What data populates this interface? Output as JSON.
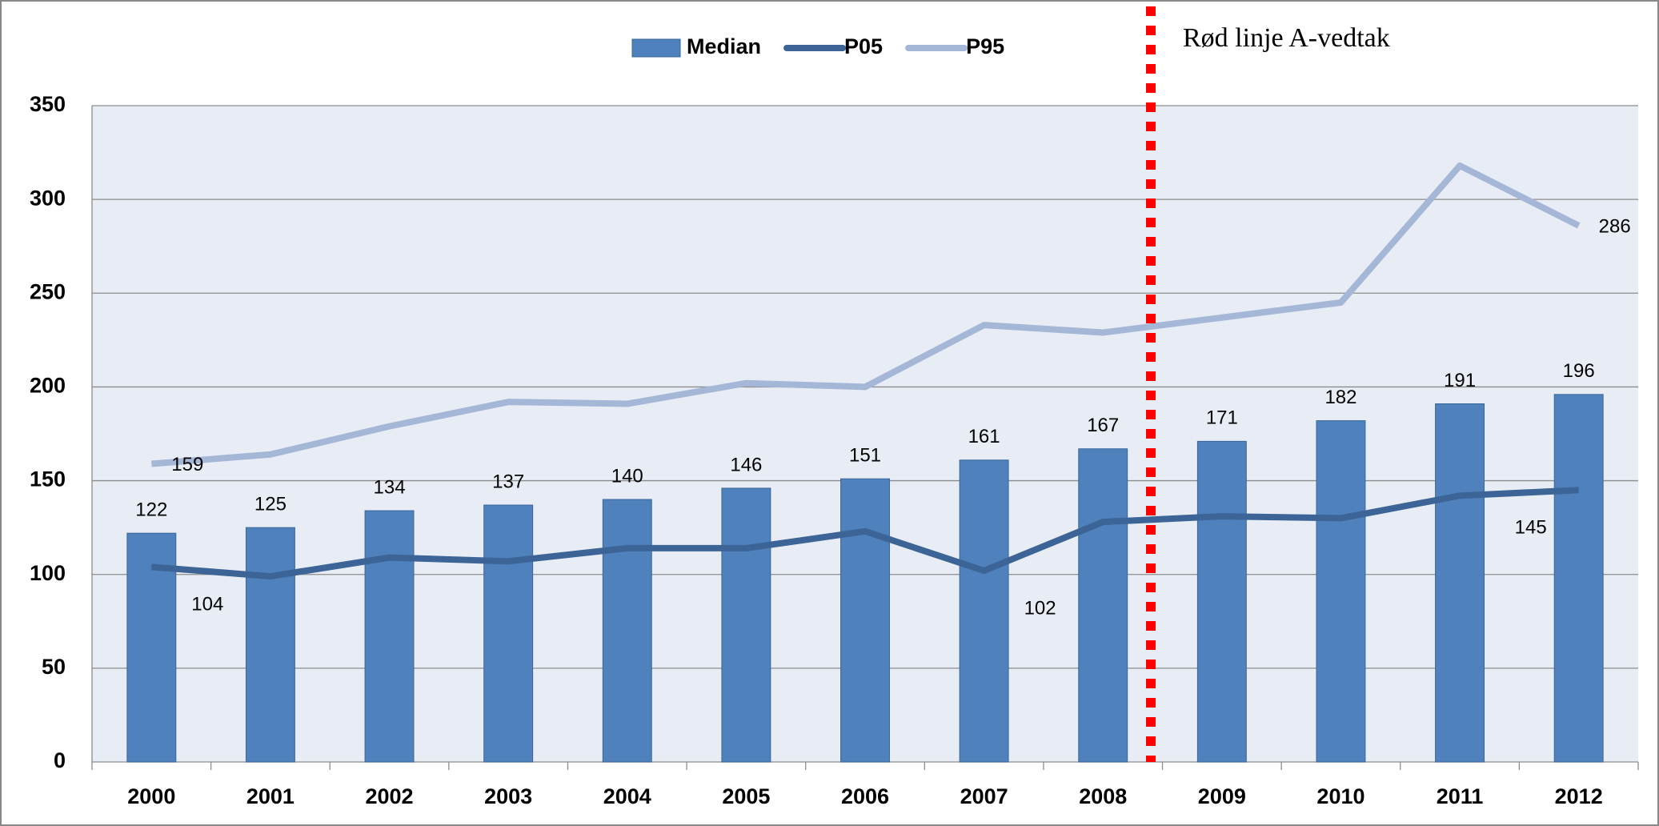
{
  "chart_data": {
    "type": "bar_line",
    "categories": [
      "2000",
      "2001",
      "2002",
      "2003",
      "2004",
      "2005",
      "2006",
      "2007",
      "2008",
      "2009",
      "2010",
      "2011",
      "2012"
    ],
    "series": [
      {
        "name": "Median",
        "type": "bar",
        "color": "#4f81bd",
        "values": [
          122,
          125,
          134,
          137,
          140,
          146,
          151,
          161,
          167,
          171,
          182,
          191,
          196
        ]
      },
      {
        "name": "P05",
        "type": "line",
        "color": "#3c6496",
        "values": [
          104,
          99,
          109,
          107,
          114,
          114,
          123,
          102,
          128,
          131,
          130,
          142,
          145
        ],
        "value_labels": [
          "104",
          null,
          null,
          null,
          null,
          null,
          null,
          "102",
          null,
          null,
          null,
          null,
          "145"
        ]
      },
      {
        "name": "P95",
        "type": "line",
        "color": "#a5b7d7",
        "values": [
          159,
          164,
          179,
          192,
          191,
          202,
          200,
          233,
          229,
          237,
          245,
          318,
          286
        ],
        "value_labels": [
          "159",
          null,
          null,
          null,
          null,
          null,
          null,
          null,
          null,
          null,
          null,
          null,
          "286"
        ]
      }
    ],
    "annotation": "Rød linje A-vedtak",
    "ylim": [
      0,
      350
    ],
    "yticks": [
      0,
      50,
      100,
      150,
      200,
      250,
      300,
      350
    ],
    "grid": true
  }
}
